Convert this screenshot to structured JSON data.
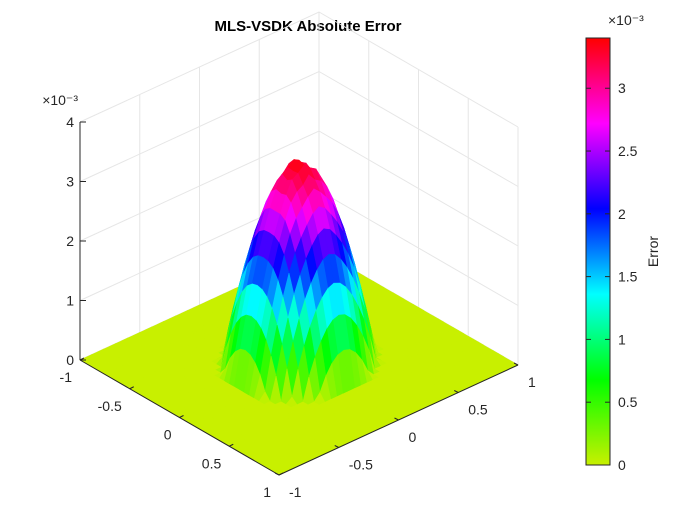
{
  "chart_data": {
    "type": "surface",
    "title": "MLS-VSDK Absolute Error",
    "x": {
      "ticks": [
        -1,
        -0.5,
        0,
        0.5,
        1
      ],
      "tick_labels": [
        "-1",
        "-0.5",
        "0",
        "0.5",
        "1"
      ],
      "range": [
        -1,
        1
      ]
    },
    "y": {
      "ticks": [
        -1,
        -0.5,
        0,
        0.5,
        1
      ],
      "tick_labels": [
        "-1",
        "-0.5",
        "0",
        "0.5",
        "1"
      ],
      "range": [
        -1,
        1
      ]
    },
    "z": {
      "ticks": [
        0,
        1,
        2,
        3,
        4
      ],
      "tick_labels": [
        "0",
        "1",
        "2",
        "3",
        "4"
      ],
      "range": [
        0,
        4
      ],
      "exponent": "×10⁻³"
    },
    "colorbar": {
      "label": "Error",
      "exponent": "×10⁻³",
      "ticks": [
        0,
        0.5,
        1,
        1.5,
        2,
        2.5,
        3
      ],
      "tick_labels": [
        "0",
        "0.5",
        "1",
        "1.5",
        "2",
        "2.5",
        "3"
      ],
      "range": [
        0,
        3.4
      ],
      "colormap": [
        "#c8f000",
        "#00ff00",
        "#00ffff",
        "#0000ff",
        "#ff00ff",
        "#ff0000"
      ]
    },
    "surface": {
      "description_values": "error is zero outside radius ~0.5 and forms a dome peaking near 3.4e-3 at the center",
      "peak": 3.4,
      "support_radius": 0.5,
      "grid": [
        -1,
        -0.9,
        -0.8,
        -0.7,
        -0.6,
        -0.5,
        -0.4,
        -0.3,
        -0.2,
        -0.1,
        0,
        0.1,
        0.2,
        0.3,
        0.4,
        0.5,
        0.6,
        0.7,
        0.8,
        0.9,
        1
      ]
    },
    "grid": true
  }
}
